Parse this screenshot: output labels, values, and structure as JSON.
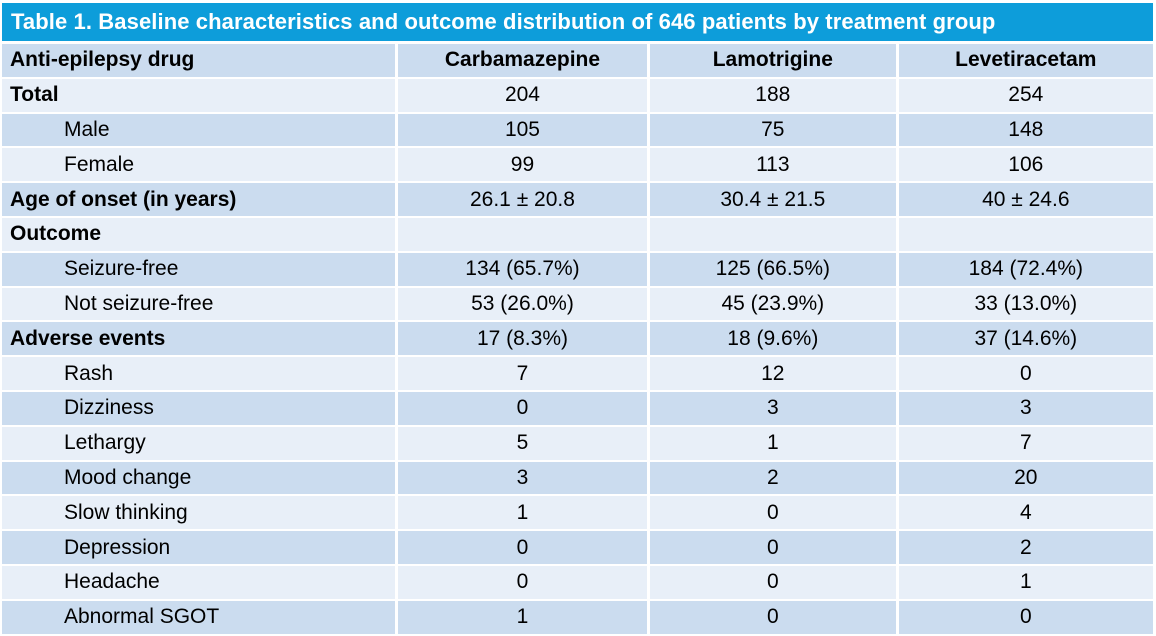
{
  "chart_data": {
    "type": "table",
    "title": "Table 1. Baseline characteristics and outcome distribution of 646 patients by treatment group",
    "columns": [
      "Anti-epilepsy drug",
      "Carbamazepine",
      "Lamotrigine",
      "Levetiracetam"
    ],
    "rows": [
      {
        "label": "Total",
        "bold": true,
        "indent": false,
        "values": [
          "204",
          "188",
          "254"
        ]
      },
      {
        "label": "Male",
        "bold": false,
        "indent": true,
        "values": [
          "105",
          "75",
          "148"
        ]
      },
      {
        "label": "Female",
        "bold": false,
        "indent": true,
        "values": [
          "99",
          "113",
          "106"
        ]
      },
      {
        "label": "Age of onset (in years)",
        "bold": true,
        "indent": false,
        "values": [
          "26.1 ± 20.8",
          "30.4 ± 21.5",
          "40 ± 24.6"
        ]
      },
      {
        "label": "Outcome",
        "bold": true,
        "indent": false,
        "values": [
          "",
          "",
          ""
        ]
      },
      {
        "label": "Seizure-free",
        "bold": false,
        "indent": true,
        "values": [
          "134 (65.7%)",
          "125 (66.5%)",
          "184 (72.4%)"
        ]
      },
      {
        "label": "Not seizure-free",
        "bold": false,
        "indent": true,
        "values": [
          "53 (26.0%)",
          "45 (23.9%)",
          "33 (13.0%)"
        ]
      },
      {
        "label": "Adverse events",
        "bold": true,
        "indent": false,
        "values": [
          "17 (8.3%)",
          "18 (9.6%)",
          "37 (14.6%)"
        ]
      },
      {
        "label": "Rash",
        "bold": false,
        "indent": true,
        "values": [
          "7",
          "12",
          "0"
        ]
      },
      {
        "label": "Dizziness",
        "bold": false,
        "indent": true,
        "values": [
          "0",
          "3",
          "3"
        ]
      },
      {
        "label": "Lethargy",
        "bold": false,
        "indent": true,
        "values": [
          "5",
          "1",
          "7"
        ]
      },
      {
        "label": "Mood change",
        "bold": false,
        "indent": true,
        "values": [
          "3",
          "2",
          "20"
        ]
      },
      {
        "label": "Slow thinking",
        "bold": false,
        "indent": true,
        "values": [
          "1",
          "0",
          "4"
        ]
      },
      {
        "label": "Depression",
        "bold": false,
        "indent": true,
        "values": [
          "0",
          "0",
          "2"
        ]
      },
      {
        "label": "Headache",
        "bold": false,
        "indent": true,
        "values": [
          "0",
          "0",
          "1"
        ]
      },
      {
        "label": "Abnormal SGOT",
        "bold": false,
        "indent": true,
        "values": [
          "1",
          "0",
          "0"
        ]
      }
    ],
    "colors": {
      "title_bar_bg": "#0d9dda",
      "title_text": "#ffffff",
      "band_dark": "#cbdcef",
      "band_light": "#e8eff8",
      "cell_text": "#000000",
      "separator": "#ffffff"
    },
    "layout": {
      "banded_rows": true,
      "header_band": "dark",
      "first_body_band": "light",
      "value_alignment": "center"
    }
  }
}
